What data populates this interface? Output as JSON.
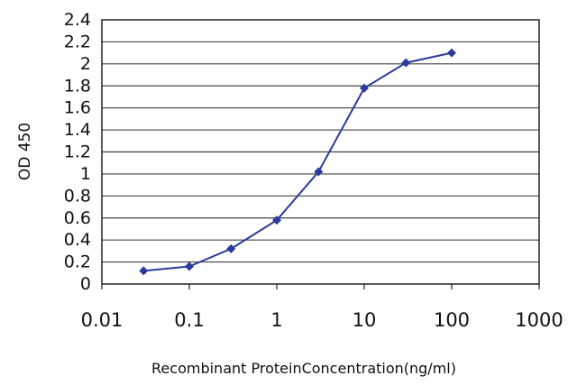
{
  "chart_data": {
    "type": "line",
    "title": "",
    "xlabel": "Recombinant ProteinConcentration(ng/ml)",
    "ylabel": "OD 450",
    "x_scale": "log",
    "xlim": [
      0.01,
      1000
    ],
    "ylim": [
      0,
      2.4
    ],
    "x_ticks": [
      "0.01",
      "0.1",
      "1",
      "10",
      "100",
      "1000"
    ],
    "y_ticks": [
      "0",
      "0.2",
      "0.4",
      "0.6",
      "0.8",
      "1",
      "1.2",
      "1.4",
      "1.6",
      "1.8",
      "2",
      "2.2",
      "2.4"
    ],
    "grid": "horizontal",
    "legend": "none",
    "series": [
      {
        "x": [
          0.03,
          0.1,
          0.3,
          1,
          3,
          10,
          30,
          100
        ],
        "y": [
          0.12,
          0.16,
          0.32,
          0.58,
          1.02,
          1.78,
          2.01,
          2.1
        ],
        "color": "#2b3a9c"
      }
    ]
  }
}
